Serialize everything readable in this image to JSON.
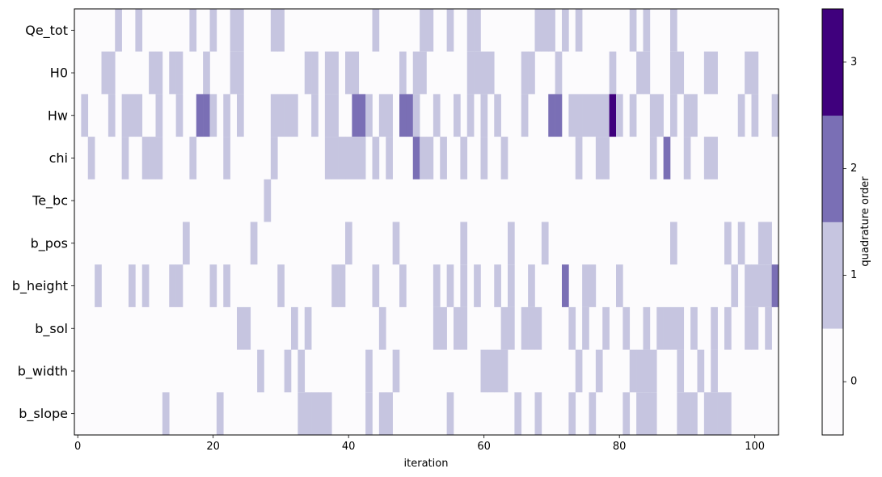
{
  "chart_data": {
    "type": "heatmap",
    "title": "",
    "xlabel": "iteration",
    "ylabel": "",
    "xlim": [
      -0.5,
      103.5
    ],
    "x_ticks": [
      0,
      20,
      40,
      60,
      80,
      100
    ],
    "rows": [
      "Qe_tot",
      "H0",
      "Hw",
      "chi",
      "Te_bc",
      "b_pos",
      "b_height",
      "b_sol",
      "b_width",
      "b_slope"
    ],
    "n_iterations": 104,
    "colorbar": {
      "label": "quadrature order",
      "levels": [
        0,
        1,
        2,
        3
      ],
      "colors": [
        "#fcfbfd",
        "#c6c5e0",
        "#7a6fb5",
        "#3f007d"
      ]
    },
    "cells": {
      "Qe_tot": [
        [
          6,
          1
        ],
        [
          9,
          1
        ],
        [
          17,
          1
        ],
        [
          20,
          1
        ],
        [
          23,
          1
        ],
        [
          24,
          1
        ],
        [
          29,
          1
        ],
        [
          30,
          1
        ],
        [
          44,
          1
        ],
        [
          51,
          1
        ],
        [
          52,
          1
        ],
        [
          55,
          1
        ],
        [
          58,
          1
        ],
        [
          59,
          1
        ],
        [
          68,
          1
        ],
        [
          69,
          1
        ],
        [
          70,
          1
        ],
        [
          72,
          1
        ],
        [
          74,
          1
        ],
        [
          82,
          1
        ],
        [
          84,
          1
        ],
        [
          88,
          1
        ]
      ],
      "H0": [
        [
          4,
          1
        ],
        [
          5,
          1
        ],
        [
          11,
          1
        ],
        [
          12,
          1
        ],
        [
          14,
          1
        ],
        [
          15,
          1
        ],
        [
          19,
          1
        ],
        [
          23,
          1
        ],
        [
          24,
          1
        ],
        [
          34,
          1
        ],
        [
          35,
          1
        ],
        [
          37,
          1
        ],
        [
          38,
          1
        ],
        [
          40,
          1
        ],
        [
          41,
          1
        ],
        [
          48,
          1
        ],
        [
          50,
          1
        ],
        [
          51,
          1
        ],
        [
          58,
          1
        ],
        [
          59,
          1
        ],
        [
          60,
          1
        ],
        [
          61,
          1
        ],
        [
          66,
          1
        ],
        [
          67,
          1
        ],
        [
          71,
          1
        ],
        [
          79,
          1
        ],
        [
          83,
          1
        ],
        [
          84,
          1
        ],
        [
          88,
          1
        ],
        [
          89,
          1
        ],
        [
          93,
          1
        ],
        [
          94,
          1
        ],
        [
          99,
          1
        ],
        [
          100,
          1
        ]
      ],
      "Hw": [
        [
          1,
          1
        ],
        [
          5,
          1
        ],
        [
          7,
          1
        ],
        [
          8,
          1
        ],
        [
          9,
          1
        ],
        [
          12,
          1
        ],
        [
          15,
          1
        ],
        [
          18,
          2
        ],
        [
          19,
          2
        ],
        [
          20,
          1
        ],
        [
          22,
          1
        ],
        [
          24,
          1
        ],
        [
          29,
          1
        ],
        [
          30,
          1
        ],
        [
          31,
          1
        ],
        [
          32,
          1
        ],
        [
          35,
          1
        ],
        [
          37,
          1
        ],
        [
          38,
          1
        ],
        [
          41,
          2
        ],
        [
          42,
          2
        ],
        [
          43,
          1
        ],
        [
          45,
          1
        ],
        [
          46,
          1
        ],
        [
          48,
          2
        ],
        [
          49,
          2
        ],
        [
          50,
          1
        ],
        [
          53,
          1
        ],
        [
          56,
          1
        ],
        [
          58,
          1
        ],
        [
          60,
          1
        ],
        [
          62,
          1
        ],
        [
          66,
          1
        ],
        [
          70,
          2
        ],
        [
          71,
          2
        ],
        [
          73,
          1
        ],
        [
          74,
          1
        ],
        [
          75,
          1
        ],
        [
          76,
          1
        ],
        [
          77,
          1
        ],
        [
          78,
          1
        ],
        [
          79,
          3
        ],
        [
          80,
          1
        ],
        [
          82,
          1
        ],
        [
          85,
          1
        ],
        [
          86,
          1
        ],
        [
          88,
          1
        ],
        [
          90,
          1
        ],
        [
          91,
          1
        ],
        [
          98,
          1
        ],
        [
          100,
          1
        ],
        [
          103,
          1
        ]
      ],
      "chi": [
        [
          2,
          1
        ],
        [
          7,
          1
        ],
        [
          10,
          1
        ],
        [
          11,
          1
        ],
        [
          12,
          1
        ],
        [
          17,
          1
        ],
        [
          22,
          1
        ],
        [
          29,
          1
        ],
        [
          37,
          1
        ],
        [
          38,
          1
        ],
        [
          39,
          1
        ],
        [
          40,
          1
        ],
        [
          41,
          1
        ],
        [
          42,
          1
        ],
        [
          44,
          1
        ],
        [
          46,
          1
        ],
        [
          50,
          2
        ],
        [
          51,
          1
        ],
        [
          52,
          1
        ],
        [
          54,
          1
        ],
        [
          57,
          1
        ],
        [
          60,
          1
        ],
        [
          63,
          1
        ],
        [
          74,
          1
        ],
        [
          77,
          1
        ],
        [
          78,
          1
        ],
        [
          85,
          1
        ],
        [
          87,
          2
        ],
        [
          90,
          1
        ],
        [
          93,
          1
        ],
        [
          94,
          1
        ]
      ],
      "Te_bc": [
        [
          28,
          1
        ]
      ],
      "b_pos": [
        [
          16,
          1
        ],
        [
          26,
          1
        ],
        [
          40,
          1
        ],
        [
          47,
          1
        ],
        [
          57,
          1
        ],
        [
          64,
          1
        ],
        [
          69,
          1
        ],
        [
          88,
          1
        ],
        [
          96,
          1
        ],
        [
          98,
          1
        ],
        [
          101,
          1
        ],
        [
          102,
          1
        ]
      ],
      "b_height": [
        [
          3,
          1
        ],
        [
          8,
          1
        ],
        [
          10,
          1
        ],
        [
          14,
          1
        ],
        [
          15,
          1
        ],
        [
          20,
          1
        ],
        [
          22,
          1
        ],
        [
          30,
          1
        ],
        [
          38,
          1
        ],
        [
          39,
          1
        ],
        [
          44,
          1
        ],
        [
          48,
          1
        ],
        [
          53,
          1
        ],
        [
          55,
          1
        ],
        [
          57,
          1
        ],
        [
          59,
          1
        ],
        [
          62,
          1
        ],
        [
          64,
          1
        ],
        [
          67,
          1
        ],
        [
          72,
          2
        ],
        [
          75,
          1
        ],
        [
          76,
          1
        ],
        [
          80,
          1
        ],
        [
          97,
          1
        ],
        [
          99,
          1
        ],
        [
          100,
          1
        ],
        [
          101,
          1
        ],
        [
          102,
          1
        ],
        [
          103,
          2
        ]
      ],
      "b_sol": [
        [
          24,
          1
        ],
        [
          25,
          1
        ],
        [
          32,
          1
        ],
        [
          34,
          1
        ],
        [
          45,
          1
        ],
        [
          53,
          1
        ],
        [
          54,
          1
        ],
        [
          56,
          1
        ],
        [
          57,
          1
        ],
        [
          63,
          1
        ],
        [
          64,
          1
        ],
        [
          66,
          1
        ],
        [
          67,
          1
        ],
        [
          68,
          1
        ],
        [
          73,
          1
        ],
        [
          75,
          1
        ],
        [
          78,
          1
        ],
        [
          81,
          1
        ],
        [
          84,
          1
        ],
        [
          86,
          1
        ],
        [
          87,
          1
        ],
        [
          88,
          1
        ],
        [
          89,
          1
        ],
        [
          91,
          1
        ],
        [
          94,
          1
        ],
        [
          96,
          1
        ],
        [
          99,
          1
        ],
        [
          100,
          1
        ],
        [
          102,
          1
        ]
      ],
      "b_width": [
        [
          27,
          1
        ],
        [
          31,
          1
        ],
        [
          33,
          1
        ],
        [
          43,
          1
        ],
        [
          47,
          1
        ],
        [
          60,
          1
        ],
        [
          61,
          1
        ],
        [
          62,
          1
        ],
        [
          63,
          1
        ],
        [
          74,
          1
        ],
        [
          77,
          1
        ],
        [
          82,
          1
        ],
        [
          83,
          1
        ],
        [
          84,
          1
        ],
        [
          85,
          1
        ],
        [
          89,
          1
        ],
        [
          92,
          1
        ],
        [
          94,
          1
        ]
      ],
      "b_slope": [
        [
          13,
          1
        ],
        [
          21,
          1
        ],
        [
          33,
          1
        ],
        [
          34,
          1
        ],
        [
          35,
          1
        ],
        [
          36,
          1
        ],
        [
          37,
          1
        ],
        [
          43,
          1
        ],
        [
          45,
          1
        ],
        [
          46,
          1
        ],
        [
          55,
          1
        ],
        [
          65,
          1
        ],
        [
          68,
          1
        ],
        [
          73,
          1
        ],
        [
          76,
          1
        ],
        [
          81,
          1
        ],
        [
          83,
          1
        ],
        [
          84,
          1
        ],
        [
          85,
          1
        ],
        [
          89,
          1
        ],
        [
          90,
          1
        ],
        [
          91,
          1
        ],
        [
          93,
          1
        ],
        [
          94,
          1
        ],
        [
          95,
          1
        ],
        [
          96,
          1
        ]
      ]
    }
  }
}
